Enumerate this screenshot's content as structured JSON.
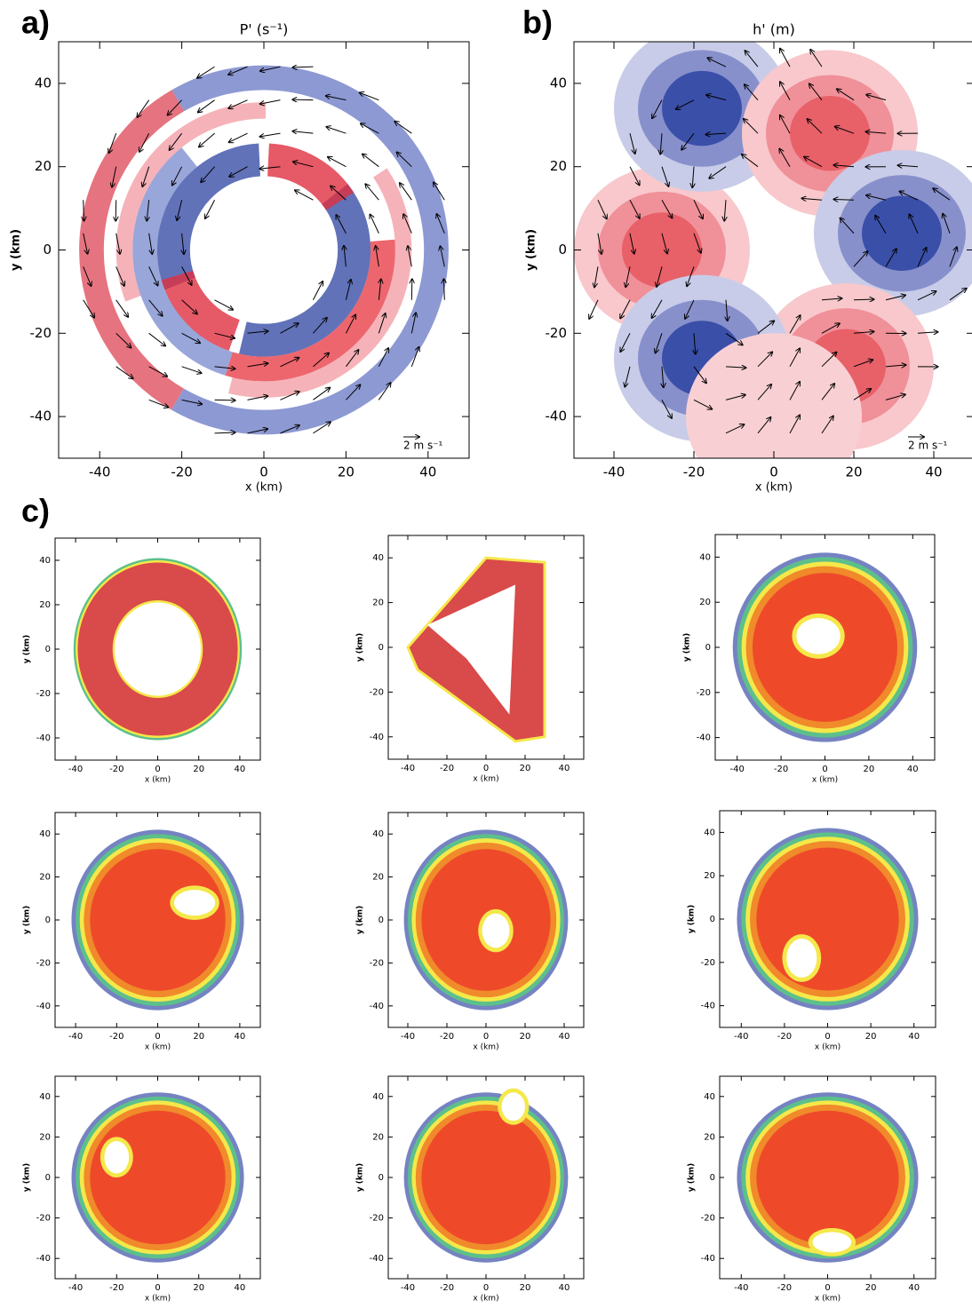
{
  "figure_labels": [
    "a)",
    "b)",
    "c)"
  ],
  "chart_data": [
    {
      "type": "contour",
      "title": "P' (s⁻¹)",
      "x_label": "x (km)",
      "y_label": "y (km)",
      "reference_vector": "2 m s⁻¹",
      "xlim": [
        -50,
        50
      ],
      "ylim": [
        -50,
        50
      ],
      "xticks": [
        -40,
        -20,
        0,
        20,
        40
      ],
      "yticks": [
        -40,
        -20,
        0,
        20,
        40
      ]
    },
    {
      "type": "contour",
      "title": "h' (m)",
      "x_label": "x (km)",
      "y_label": "y (km)",
      "reference_vector": "2 m s⁻¹",
      "xlim": [
        -50,
        50
      ],
      "ylim": [
        -50,
        50
      ],
      "xticks": [
        -40,
        -20,
        0,
        20,
        40
      ],
      "yticks": [
        -40,
        -20,
        0,
        20,
        40
      ]
    },
    {
      "type": "contour",
      "x_label": "x (km)",
      "y_label": "y (km)",
      "xlim": [
        -50,
        50
      ],
      "ylim": [
        -50,
        50
      ],
      "xticks": [
        -40,
        -20,
        0,
        20,
        40
      ],
      "yticks": [
        -40,
        -20,
        0,
        20,
        40
      ]
    },
    {
      "type": "contour",
      "x_label": "x (km)",
      "y_label": "y (km)",
      "xlim": [
        -50,
        50
      ],
      "ylim": [
        -50,
        50
      ],
      "xticks": [
        -40,
        -20,
        0,
        20,
        40
      ],
      "yticks": [
        -40,
        -20,
        0,
        20,
        40
      ]
    },
    {
      "type": "contour",
      "x_label": "x (km)",
      "y_label": "y (km)",
      "xlim": [
        -50,
        50
      ],
      "ylim": [
        -50,
        50
      ],
      "xticks": [
        -40,
        -20,
        0,
        20,
        40
      ],
      "yticks": [
        -40,
        -20,
        0,
        20,
        40
      ]
    },
    {
      "type": "contour",
      "x_label": "x (km)",
      "y_label": "y (km)",
      "xlim": [
        -50,
        50
      ],
      "ylim": [
        -50,
        50
      ],
      "xticks": [
        -40,
        -20,
        0,
        20,
        40
      ],
      "yticks": [
        -40,
        -20,
        0,
        20,
        40
      ]
    },
    {
      "type": "contour",
      "x_label": "x (km)",
      "y_label": "y (km)",
      "xlim": [
        -50,
        50
      ],
      "ylim": [
        -50,
        50
      ],
      "xticks": [
        -40,
        -20,
        0,
        20,
        40
      ],
      "yticks": [
        -40,
        -20,
        0,
        20,
        40
      ]
    },
    {
      "type": "contour",
      "x_label": "x (km)",
      "y_label": "y (km)",
      "xlim": [
        -50,
        50
      ],
      "ylim": [
        -50,
        50
      ],
      "xticks": [
        -40,
        -20,
        0,
        20,
        40
      ],
      "yticks": [
        -40,
        -20,
        0,
        20,
        40
      ]
    },
    {
      "type": "contour",
      "x_label": "x (km)",
      "y_label": "y (km)",
      "xlim": [
        -50,
        50
      ],
      "ylim": [
        -50,
        50
      ],
      "xticks": [
        -40,
        -20,
        0,
        20,
        40
      ],
      "yticks": [
        -40,
        -20,
        0,
        20,
        40
      ]
    },
    {
      "type": "contour",
      "x_label": "x (km)",
      "y_label": "y (km)",
      "xlim": [
        -50,
        50
      ],
      "ylim": [
        -50,
        50
      ],
      "xticks": [
        -40,
        -20,
        0,
        20,
        40
      ],
      "yticks": [
        -40,
        -20,
        0,
        20,
        40
      ]
    },
    {
      "type": "contour",
      "x_label": "x (km)",
      "y_label": "y (km)",
      "xlim": [
        -50,
        50
      ],
      "ylim": [
        -50,
        50
      ],
      "xticks": [
        -40,
        -20,
        0,
        20,
        40
      ],
      "yticks": [
        -40,
        -20,
        0,
        20,
        40
      ]
    }
  ]
}
